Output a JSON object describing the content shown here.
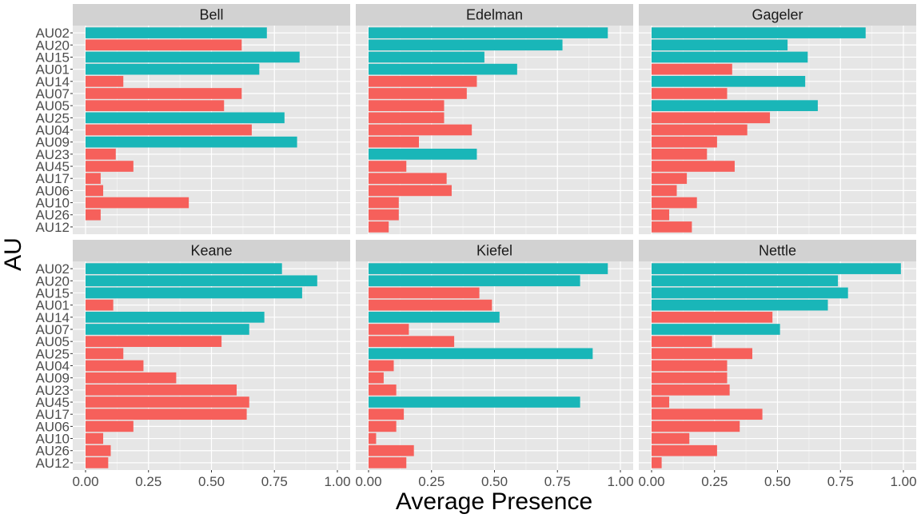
{
  "chart_data": {
    "type": "bar",
    "orientation": "horizontal",
    "facet": "small-multiples",
    "xlabel": "Average Presence",
    "ylabel": "AU",
    "xlim": [
      0,
      1
    ],
    "x_ticks": [
      "0.00",
      "0.25",
      "0.50",
      "0.75",
      "1.00"
    ],
    "categories": [
      "AU02",
      "AU20",
      "AU15",
      "AU01",
      "AU14",
      "AU07",
      "AU05",
      "AU25",
      "AU04",
      "AU09",
      "AU23",
      "AU45",
      "AU17",
      "AU06",
      "AU10",
      "AU26",
      "AU12"
    ],
    "grid": true,
    "legend": "none",
    "colors": {
      "teal": "#19b6b8",
      "salmon": "#f6605b",
      "panel_bg": "#e6e6e6",
      "strip_bg": "#d2d2d2",
      "grid": "#ffffff"
    },
    "panels": [
      {
        "name": "Bell",
        "values": [
          0.72,
          0.62,
          0.85,
          0.69,
          0.15,
          0.62,
          0.55,
          0.79,
          0.66,
          0.84,
          0.12,
          0.19,
          0.06,
          0.07,
          0.41,
          0.06,
          0.0
        ],
        "colors": [
          "teal",
          "salmon",
          "teal",
          "teal",
          "salmon",
          "salmon",
          "salmon",
          "teal",
          "salmon",
          "teal",
          "salmon",
          "salmon",
          "salmon",
          "salmon",
          "salmon",
          "salmon",
          "salmon"
        ]
      },
      {
        "name": "Edelman",
        "values": [
          0.95,
          0.77,
          0.46,
          0.59,
          0.43,
          0.39,
          0.3,
          0.3,
          0.41,
          0.2,
          0.43,
          0.15,
          0.31,
          0.33,
          0.12,
          0.12,
          0.08
        ],
        "colors": [
          "teal",
          "teal",
          "teal",
          "teal",
          "salmon",
          "salmon",
          "salmon",
          "salmon",
          "salmon",
          "salmon",
          "teal",
          "salmon",
          "salmon",
          "salmon",
          "salmon",
          "salmon",
          "salmon"
        ]
      },
      {
        "name": "Gageler",
        "values": [
          0.85,
          0.54,
          0.62,
          0.32,
          0.61,
          0.3,
          0.66,
          0.47,
          0.38,
          0.26,
          0.22,
          0.33,
          0.14,
          0.1,
          0.18,
          0.07,
          0.16
        ],
        "colors": [
          "teal",
          "teal",
          "teal",
          "salmon",
          "teal",
          "salmon",
          "teal",
          "salmon",
          "salmon",
          "salmon",
          "salmon",
          "salmon",
          "salmon",
          "salmon",
          "salmon",
          "salmon",
          "salmon"
        ]
      },
      {
        "name": "Keane",
        "values": [
          0.78,
          0.92,
          0.86,
          0.11,
          0.71,
          0.65,
          0.54,
          0.15,
          0.23,
          0.36,
          0.6,
          0.65,
          0.64,
          0.19,
          0.07,
          0.1,
          0.09
        ],
        "colors": [
          "teal",
          "teal",
          "teal",
          "salmon",
          "teal",
          "teal",
          "salmon",
          "salmon",
          "salmon",
          "salmon",
          "salmon",
          "salmon",
          "salmon",
          "salmon",
          "salmon",
          "salmon",
          "salmon"
        ]
      },
      {
        "name": "Kiefel",
        "values": [
          0.95,
          0.84,
          0.44,
          0.49,
          0.52,
          0.16,
          0.34,
          0.89,
          0.1,
          0.06,
          0.11,
          0.84,
          0.14,
          0.11,
          0.03,
          0.18,
          0.15
        ],
        "colors": [
          "teal",
          "teal",
          "salmon",
          "salmon",
          "teal",
          "salmon",
          "salmon",
          "teal",
          "salmon",
          "salmon",
          "salmon",
          "teal",
          "salmon",
          "salmon",
          "salmon",
          "salmon",
          "salmon"
        ]
      },
      {
        "name": "Nettle",
        "values": [
          0.99,
          0.74,
          0.78,
          0.7,
          0.48,
          0.51,
          0.24,
          0.4,
          0.3,
          0.3,
          0.31,
          0.07,
          0.44,
          0.35,
          0.15,
          0.26,
          0.04
        ],
        "colors": [
          "teal",
          "teal",
          "teal",
          "teal",
          "salmon",
          "teal",
          "salmon",
          "salmon",
          "salmon",
          "salmon",
          "salmon",
          "salmon",
          "salmon",
          "salmon",
          "salmon",
          "salmon",
          "salmon"
        ]
      }
    ]
  }
}
